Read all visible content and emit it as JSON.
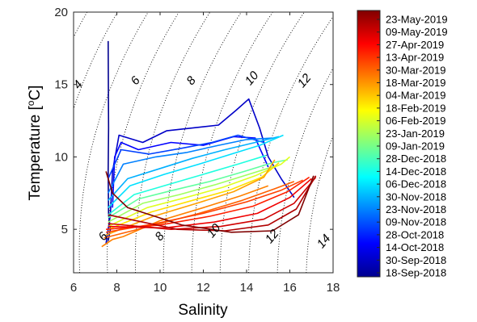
{
  "chart_data": {
    "type": "line",
    "title": "",
    "xlabel": "Salinity",
    "ylabel": "Temperature [°C]",
    "ylabel_parts": {
      "main": "Temperature [",
      "sup": "o",
      "unit": "C]"
    },
    "xlim": [
      6,
      18
    ],
    "ylim": [
      2,
      20
    ],
    "xticks": [
      "6",
      "8",
      "10",
      "12",
      "14",
      "16",
      "18"
    ],
    "yticks": [
      "5",
      "10",
      "15",
      "20"
    ],
    "density_contours": {
      "style": "dotted",
      "labels": [
        "4",
        "6",
        "8",
        "10",
        "12",
        "6",
        "8",
        "10",
        "12",
        "14"
      ],
      "sigma_values": [
        3,
        4,
        5,
        6,
        7,
        8,
        9,
        10,
        11,
        12,
        13
      ]
    },
    "colorbar": {
      "colormap": "jet",
      "ticks": [
        "23-May-2019",
        "09-May-2019",
        "27-Apr-2019",
        "13-Apr-2019",
        "30-Mar-2019",
        "18-Mar-2019",
        "04-Mar-2019",
        "18-Feb-2019",
        "06-Feb-2019",
        "23-Jan-2019",
        "09-Jan-2019",
        "28-Dec-2018",
        "14-Dec-2018",
        "06-Dec-2018",
        "30-Nov-2018",
        "23-Nov-2018",
        "09-Nov-2018",
        "28-Oct-2018",
        "14-Oct-2018",
        "30-Sep-2018",
        "18-Sep-2018"
      ]
    },
    "series": [
      {
        "date": "18-Sep-2018",
        "color": "#00008f",
        "points": [
          [
            7.6,
            18
          ],
          [
            7.62,
            12
          ],
          [
            7.6,
            9
          ],
          [
            7.62,
            6
          ],
          [
            7.7,
            5
          ],
          [
            7.6,
            4.2
          ]
        ]
      },
      {
        "date": "30-Sep-2018",
        "color": "#0000c8",
        "points": [
          [
            7.5,
            4
          ],
          [
            7.7,
            6
          ],
          [
            7.8,
            9
          ],
          [
            8.1,
            11.5
          ],
          [
            9.2,
            11
          ],
          [
            10.3,
            11.8
          ],
          [
            11.5,
            12
          ],
          [
            12.7,
            12.2
          ],
          [
            13.5,
            13.2
          ],
          [
            14.1,
            14
          ],
          [
            14.6,
            12
          ],
          [
            15,
            10
          ],
          [
            15.6,
            8.5
          ],
          [
            16.2,
            7.2
          ]
        ]
      },
      {
        "date": "14-Oct-2018",
        "color": "#0000ff",
        "points": [
          [
            7.8,
            6.5
          ],
          [
            7.9,
            10
          ],
          [
            8.2,
            11
          ],
          [
            9,
            10.5
          ],
          [
            10.5,
            11
          ],
          [
            12,
            10.8
          ],
          [
            13.4,
            11.4
          ],
          [
            14.4,
            11.3
          ],
          [
            15,
            9.3
          ]
        ]
      },
      {
        "date": "28-Oct-2018",
        "color": "#0040ff",
        "points": [
          [
            7.6,
            8.5
          ],
          [
            8.2,
            10.5
          ],
          [
            9.5,
            10.2
          ],
          [
            11,
            10.6
          ],
          [
            12.4,
            11
          ],
          [
            13.6,
            11.5
          ],
          [
            14.8,
            11
          ]
        ]
      },
      {
        "date": "09-Nov-2018",
        "color": "#0080ff",
        "points": [
          [
            7.6,
            7.5
          ],
          [
            8.3,
            9.5
          ],
          [
            9.8,
            10
          ],
          [
            11.2,
            10.3
          ],
          [
            12.7,
            10.8
          ],
          [
            14,
            11.2
          ],
          [
            15.2,
            11.3
          ]
        ]
      },
      {
        "date": "23-Nov-2018",
        "color": "#00b0ff",
        "points": [
          [
            7.6,
            7
          ],
          [
            8.5,
            8.5
          ],
          [
            10,
            9.2
          ],
          [
            11.5,
            9.9
          ],
          [
            13,
            10.5
          ],
          [
            14.4,
            11
          ],
          [
            15.5,
            11.4
          ]
        ]
      },
      {
        "date": "30-Nov-2018",
        "color": "#00e0ff",
        "points": [
          [
            7.6,
            6.5
          ],
          [
            8.6,
            8
          ],
          [
            10.2,
            8.8
          ],
          [
            11.8,
            9.5
          ],
          [
            13.3,
            10.2
          ],
          [
            14.6,
            10.8
          ],
          [
            15.7,
            11.5
          ]
        ]
      },
      {
        "date": "06-Dec-2018",
        "color": "#20ffdf",
        "points": [
          [
            7.6,
            6
          ],
          [
            8.8,
            7.4
          ],
          [
            10.4,
            8.1
          ],
          [
            12,
            8.8
          ],
          [
            13.6,
            9.5
          ],
          [
            14.9,
            10.1
          ]
        ]
      },
      {
        "date": "14-Dec-2018",
        "color": "#60ff9f",
        "points": [
          [
            7.6,
            5.8
          ],
          [
            9,
            7.1
          ],
          [
            10.6,
            7.7
          ],
          [
            12.3,
            8.3
          ],
          [
            13.9,
            9
          ],
          [
            15.2,
            9.6
          ],
          [
            15.9,
            9.8
          ]
        ]
      },
      {
        "date": "28-Dec-2018",
        "color": "#a0ff60",
        "points": [
          [
            7.6,
            5.5
          ],
          [
            9.2,
            6.8
          ],
          [
            10.9,
            7.4
          ],
          [
            12.6,
            8.1
          ],
          [
            14.1,
            8.8
          ],
          [
            15.4,
            9.4
          ]
        ]
      },
      {
        "date": "09-Jan-2019",
        "color": "#e0ff20",
        "points": [
          [
            7.6,
            5.2
          ],
          [
            9.4,
            6.5
          ],
          [
            11.2,
            7.2
          ],
          [
            12.9,
            7.9
          ],
          [
            14.4,
            8.7
          ],
          [
            15.6,
            9.5
          ],
          [
            16,
            10
          ]
        ]
      },
      {
        "date": "23-Jan-2019",
        "color": "#ffe000",
        "points": [
          [
            7.6,
            5
          ],
          [
            9.6,
            6.2
          ],
          [
            11.5,
            7
          ],
          [
            13.2,
            7.7
          ],
          [
            14.7,
            8.6
          ],
          [
            15.5,
            9.6
          ]
        ]
      },
      {
        "date": "06-Feb-2019",
        "color": "#ffa000",
        "points": [
          [
            7.5,
            4.6
          ],
          [
            9.7,
            5.9
          ],
          [
            11.7,
            6.8
          ],
          [
            13.4,
            7.6
          ],
          [
            14.8,
            8.6
          ],
          [
            15.3,
            9.8
          ]
        ]
      },
      {
        "date": "18-Feb-2019",
        "color": "#ff8000",
        "points": [
          [
            7.3,
            3.8
          ],
          [
            7.8,
            4.3
          ],
          [
            8.3,
            4.5
          ],
          [
            10,
            5.6
          ],
          [
            12,
            6.5
          ],
          [
            13.7,
            7.3
          ],
          [
            15,
            8
          ]
        ]
      },
      {
        "date": "04-Mar-2019",
        "color": "#ff6000",
        "points": [
          [
            7.4,
            4.4
          ],
          [
            9.5,
            5.2
          ],
          [
            11.8,
            6.1
          ],
          [
            13.8,
            7
          ],
          [
            15.3,
            7.8
          ],
          [
            16.2,
            8.3
          ]
        ]
      },
      {
        "date": "18-Mar-2019",
        "color": "#ff4000",
        "points": [
          [
            7.5,
            4.8
          ],
          [
            9.8,
            5.4
          ],
          [
            12,
            6.1
          ],
          [
            14,
            6.9
          ],
          [
            15.6,
            7.7
          ],
          [
            16.6,
            8.4
          ]
        ]
      },
      {
        "date": "30-Mar-2019",
        "color": "#ff2000",
        "points": [
          [
            7.5,
            5
          ],
          [
            10,
            5.3
          ],
          [
            12.3,
            5.9
          ],
          [
            14.3,
            6.6
          ],
          [
            15.9,
            7.6
          ],
          [
            16.9,
            8.6
          ]
        ]
      },
      {
        "date": "13-Apr-2019",
        "color": "#f00000",
        "points": [
          [
            7.6,
            5.2
          ],
          [
            10.2,
            5.1
          ],
          [
            12.5,
            5.5
          ],
          [
            14.5,
            6.1
          ],
          [
            16,
            7.2
          ],
          [
            17,
            8.5
          ]
        ]
      },
      {
        "date": "27-Apr-2019",
        "color": "#d00000",
        "points": [
          [
            7.6,
            5.4
          ],
          [
            10.5,
            5
          ],
          [
            12.8,
            5.2
          ],
          [
            14.8,
            5.7
          ],
          [
            16.2,
            6.8
          ],
          [
            17.2,
            8.6
          ]
        ]
      },
      {
        "date": "09-May-2019",
        "color": "#b00000",
        "points": [
          [
            7.6,
            6
          ],
          [
            10.8,
            5
          ],
          [
            13,
            4.9
          ],
          [
            15,
            5.3
          ],
          [
            16.3,
            6.4
          ],
          [
            17.2,
            8.7
          ]
        ]
      },
      {
        "date": "23-May-2019",
        "color": "#800000",
        "points": [
          [
            7.5,
            9
          ],
          [
            7.8,
            7.5
          ],
          [
            8.5,
            6.5
          ],
          [
            11,
            5.3
          ],
          [
            13.3,
            4.8
          ],
          [
            15.2,
            4.9
          ],
          [
            16.4,
            6
          ],
          [
            17.1,
            8.7
          ]
        ]
      }
    ]
  }
}
